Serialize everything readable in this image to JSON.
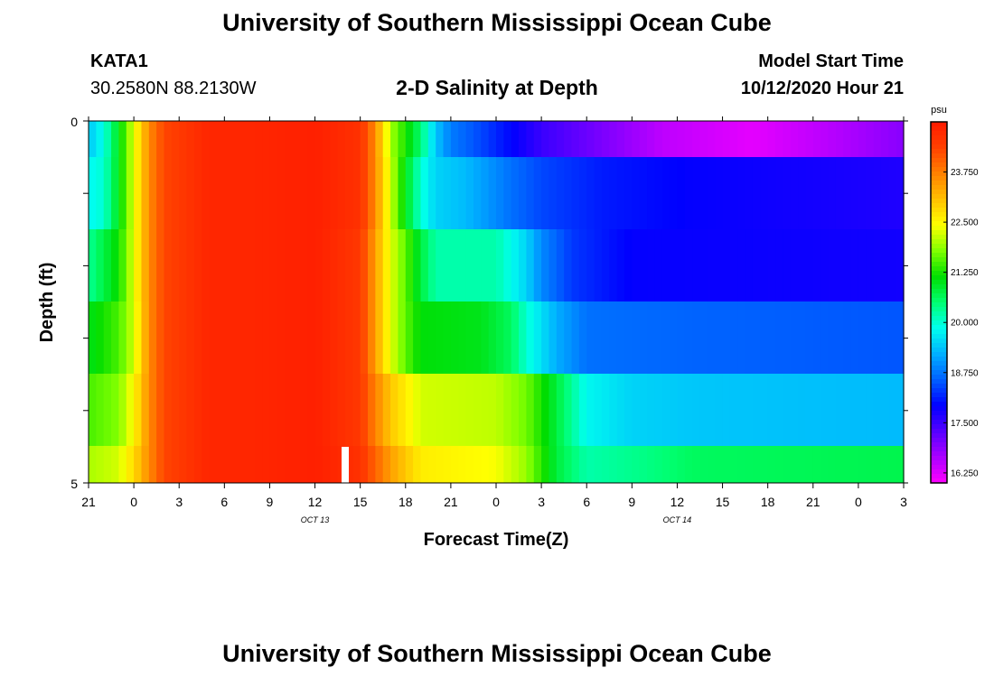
{
  "header": {
    "title": "University of Southern Mississippi Ocean Cube",
    "station": "KATA1",
    "coords": "30.2580N 88.2130W",
    "plot_title": "2-D Salinity at Depth",
    "model_label": "Model Start Time",
    "model_time": "10/12/2020 Hour 21"
  },
  "footer": {
    "title": "University of Southern Mississippi Ocean Cube"
  },
  "chart_data": {
    "type": "heatmap",
    "title": "2-D Salinity at Depth",
    "xlabel": "Forecast Time(Z)",
    "ylabel": "Depth (ft)",
    "x_ticks": [
      "21",
      "0",
      "3",
      "6",
      "9",
      "12",
      "15",
      "18",
      "21",
      "0",
      "3",
      "6",
      "9",
      "12",
      "15",
      "18",
      "21",
      "0",
      "3"
    ],
    "date_labels": [
      {
        "text": "OCT 13",
        "hour_index": 5
      },
      {
        "text": "OCT 14",
        "hour_index": 13
      }
    ],
    "y_ticks": [
      "0",
      "5"
    ],
    "ylim": [
      0,
      5
    ],
    "forecast_hours": 54,
    "current_time_marker_hour": 17,
    "colorbar": {
      "unit": "psu",
      "min": 16.0,
      "max": 25.0,
      "tick_values": [
        "23.750",
        "22.500",
        "21.250",
        "20.000",
        "18.750",
        "17.500",
        "16.250"
      ],
      "colors": [
        "#ff00ff",
        "#aa00ff",
        "#5500ff",
        "#0000ff",
        "#0060ff",
        "#00b0ff",
        "#00ffee",
        "#00ff70",
        "#00dd00",
        "#80ff00",
        "#ffff00",
        "#ffc000",
        "#ff8000",
        "#ff4000",
        "#ff1a00"
      ]
    },
    "depth_layers": [
      {
        "label": "layer 1",
        "keyframes": [
          [
            0,
            19.4
          ],
          [
            1,
            19.9
          ],
          [
            2,
            21.0
          ],
          [
            3,
            22.3
          ],
          [
            4,
            23.6
          ],
          [
            5,
            24.3
          ],
          [
            8,
            24.8
          ],
          [
            11,
            24.8
          ],
          [
            15,
            24.9
          ],
          [
            18,
            24.6
          ],
          [
            19,
            23.6
          ],
          [
            20,
            22.0
          ],
          [
            22,
            20.5
          ],
          [
            23,
            19.4
          ],
          [
            24,
            18.8
          ],
          [
            26,
            18.4
          ],
          [
            30,
            17.5
          ],
          [
            34,
            17.0
          ],
          [
            38,
            16.5
          ],
          [
            44,
            16.2
          ],
          [
            50,
            16.6
          ],
          [
            54,
            16.9
          ]
        ]
      },
      {
        "label": "layer 2",
        "keyframes": [
          [
            0,
            19.8
          ],
          [
            1,
            20.0
          ],
          [
            2,
            21.0
          ],
          [
            3,
            22.3
          ],
          [
            4,
            23.6
          ],
          [
            5,
            24.3
          ],
          [
            8,
            24.8
          ],
          [
            11,
            24.8
          ],
          [
            15,
            24.9
          ],
          [
            18,
            24.6
          ],
          [
            19,
            23.6
          ],
          [
            20,
            22.2
          ],
          [
            21,
            21.0
          ],
          [
            22,
            20.0
          ],
          [
            23,
            19.5
          ],
          [
            25,
            19.3
          ],
          [
            28,
            18.7
          ],
          [
            30,
            18.4
          ],
          [
            34,
            18.1
          ],
          [
            40,
            17.9
          ],
          [
            54,
            17.7
          ]
        ]
      },
      {
        "label": "layer 3",
        "keyframes": [
          [
            0,
            20.3
          ],
          [
            2,
            21.2
          ],
          [
            3,
            22.3
          ],
          [
            4,
            23.6
          ],
          [
            5,
            24.3
          ],
          [
            8,
            24.8
          ],
          [
            11,
            24.8
          ],
          [
            15,
            24.9
          ],
          [
            18,
            24.5
          ],
          [
            19,
            23.4
          ],
          [
            20,
            22.3
          ],
          [
            21,
            21.6
          ],
          [
            22,
            20.8
          ],
          [
            23,
            20.2
          ],
          [
            27,
            20.2
          ],
          [
            29,
            19.5
          ],
          [
            30,
            18.9
          ],
          [
            32,
            18.3
          ],
          [
            36,
            17.9
          ],
          [
            54,
            17.8
          ]
        ]
      },
      {
        "label": "layer 4",
        "keyframes": [
          [
            0,
            21.0
          ],
          [
            2,
            21.5
          ],
          [
            3,
            22.2
          ],
          [
            4,
            23.6
          ],
          [
            5,
            24.3
          ],
          [
            8,
            24.8
          ],
          [
            11,
            24.8
          ],
          [
            15,
            24.9
          ],
          [
            18,
            24.5
          ],
          [
            19,
            23.4
          ],
          [
            20,
            22.3
          ],
          [
            21,
            21.6
          ],
          [
            22,
            21.1
          ],
          [
            26,
            21.0
          ],
          [
            28,
            20.6
          ],
          [
            29,
            20.0
          ],
          [
            31,
            19.2
          ],
          [
            33,
            18.7
          ],
          [
            40,
            18.6
          ],
          [
            54,
            18.5
          ]
        ]
      },
      {
        "label": "layer 5",
        "keyframes": [
          [
            0,
            21.5
          ],
          [
            2,
            21.8
          ],
          [
            3,
            22.5
          ],
          [
            4,
            23.6
          ],
          [
            5,
            24.3
          ],
          [
            8,
            24.8
          ],
          [
            11,
            24.8
          ],
          [
            15,
            24.9
          ],
          [
            18,
            24.5
          ],
          [
            19,
            23.7
          ],
          [
            20,
            23.0
          ],
          [
            21,
            22.6
          ],
          [
            22,
            22.2
          ],
          [
            27,
            22.1
          ],
          [
            29,
            21.7
          ],
          [
            31,
            20.8
          ],
          [
            33,
            19.8
          ],
          [
            36,
            19.5
          ],
          [
            40,
            19.4
          ],
          [
            54,
            19.3
          ]
        ]
      },
      {
        "label": "layer 6",
        "keyframes": [
          [
            0,
            22.0
          ],
          [
            2,
            22.2
          ],
          [
            3,
            22.8
          ],
          [
            4,
            23.6
          ],
          [
            5,
            24.3
          ],
          [
            8,
            24.8
          ],
          [
            11,
            24.8
          ],
          [
            15,
            24.9
          ],
          [
            18,
            24.6
          ],
          [
            19,
            24.0
          ],
          [
            20,
            23.4
          ],
          [
            22,
            22.6
          ],
          [
            27,
            22.4
          ],
          [
            29,
            21.9
          ],
          [
            31,
            20.8
          ],
          [
            33,
            20.2
          ],
          [
            37,
            20.4
          ],
          [
            40,
            20.6
          ],
          [
            54,
            20.7
          ]
        ]
      }
    ]
  }
}
